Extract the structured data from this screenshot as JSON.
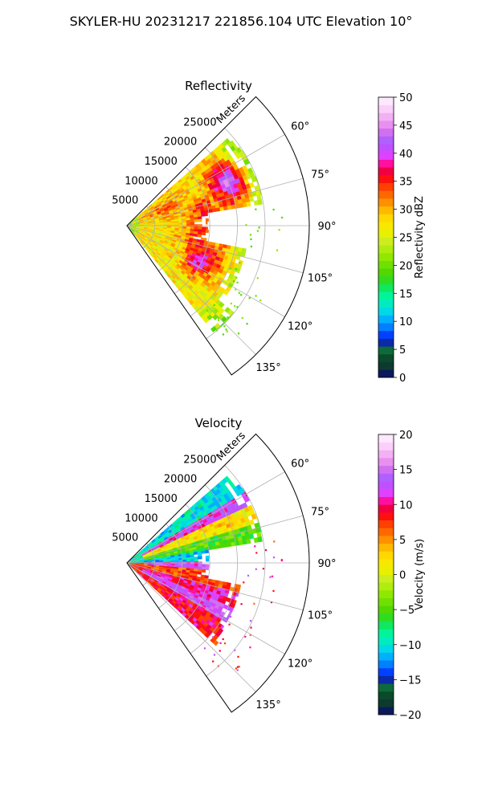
{
  "figure": {
    "suptitle": "SKYLER-HU  20231217  221856.104 UTC Elevation 10°"
  },
  "chart_data": [
    {
      "type": "heatmap",
      "projection": "polar-sector",
      "title": "Reflectivity",
      "range_label": "Meters",
      "range_ticks": [
        "5000",
        "10000",
        "15000",
        "20000",
        "25000"
      ],
      "range_values": [
        5000,
        10000,
        15000,
        20000,
        25000
      ],
      "rmax": 33000,
      "azimuth_ticks": [
        "60°",
        "75°",
        "90°",
        "105°",
        "120°",
        "135°"
      ],
      "azimuth_values": [
        60,
        75,
        90,
        105,
        120,
        135
      ],
      "azimuth_range": [
        45,
        145
      ],
      "colorbar": {
        "label": "Reflectivity dBZ",
        "min": 0,
        "max": 50,
        "ticks": [
          "0",
          "5",
          "10",
          "15",
          "20",
          "25",
          "30",
          "35",
          "40",
          "45",
          "50"
        ],
        "tick_values": [
          0,
          5,
          10,
          15,
          20,
          25,
          30,
          35,
          40,
          45,
          50
        ],
        "colors": [
          "#0a1a5c",
          "#0d3a2e",
          "#0a4a2a",
          "#0e6a3a",
          "#0a2aa8",
          "#0040ff",
          "#0080ff",
          "#00b0ff",
          "#00d8e8",
          "#00ecc0",
          "#00f59a",
          "#10e860",
          "#30dc20",
          "#50d800",
          "#70e000",
          "#90e800",
          "#b0ec10",
          "#ccee20",
          "#e8f000",
          "#f8e800",
          "#ffd800",
          "#ffb800",
          "#ff9000",
          "#ff6800",
          "#ff4000",
          "#ff1010",
          "#f00040",
          "#ff10a0",
          "#e040ff",
          "#c050ff",
          "#b060ff",
          "#d070f0",
          "#e890f0",
          "#f4b0f4",
          "#fad0fa",
          "#fde8fe"
        ]
      },
      "grid": true,
      "data_extent": {
        "az_from": 49,
        "az_to": 141,
        "max_range_m": 25000
      }
    },
    {
      "type": "heatmap",
      "projection": "polar-sector",
      "title": "Velocity",
      "range_label": "Meters",
      "range_ticks": [
        "5000",
        "10000",
        "15000",
        "20000",
        "25000"
      ],
      "range_values": [
        5000,
        10000,
        15000,
        20000,
        25000
      ],
      "rmax": 33000,
      "azimuth_ticks": [
        "60°",
        "75°",
        "90°",
        "105°",
        "120°",
        "135°"
      ],
      "azimuth_values": [
        60,
        75,
        90,
        105,
        120,
        135
      ],
      "azimuth_range": [
        45,
        145
      ],
      "colorbar": {
        "label": "Velocity (m/s)",
        "min": -20,
        "max": 20,
        "ticks": [
          "−20",
          "−15",
          "−10",
          "−5",
          "0",
          "5",
          "10",
          "15",
          "20"
        ],
        "tick_values": [
          -20,
          -15,
          -10,
          -5,
          0,
          5,
          10,
          15,
          20
        ],
        "colors": [
          "#0a1a5c",
          "#0d3a2e",
          "#0a4a2a",
          "#0e6a3a",
          "#0a2aa8",
          "#0040ff",
          "#0080ff",
          "#00b0ff",
          "#00d8e8",
          "#00ecc0",
          "#00f59a",
          "#10e860",
          "#30dc20",
          "#50d800",
          "#70e000",
          "#90e800",
          "#b0ec10",
          "#ccee20",
          "#e8f000",
          "#f8e800",
          "#ffd800",
          "#ffb800",
          "#ff9000",
          "#ff6800",
          "#ff4000",
          "#ff1010",
          "#f00040",
          "#ff10a0",
          "#e040ff",
          "#c050ff",
          "#b060ff",
          "#d070f0",
          "#e890f0",
          "#f4b0f4",
          "#fad0fa",
          "#fde8fe"
        ]
      },
      "grid": true,
      "data_extent": {
        "az_from": 49,
        "az_to": 132,
        "max_range_m": 25000
      }
    }
  ]
}
